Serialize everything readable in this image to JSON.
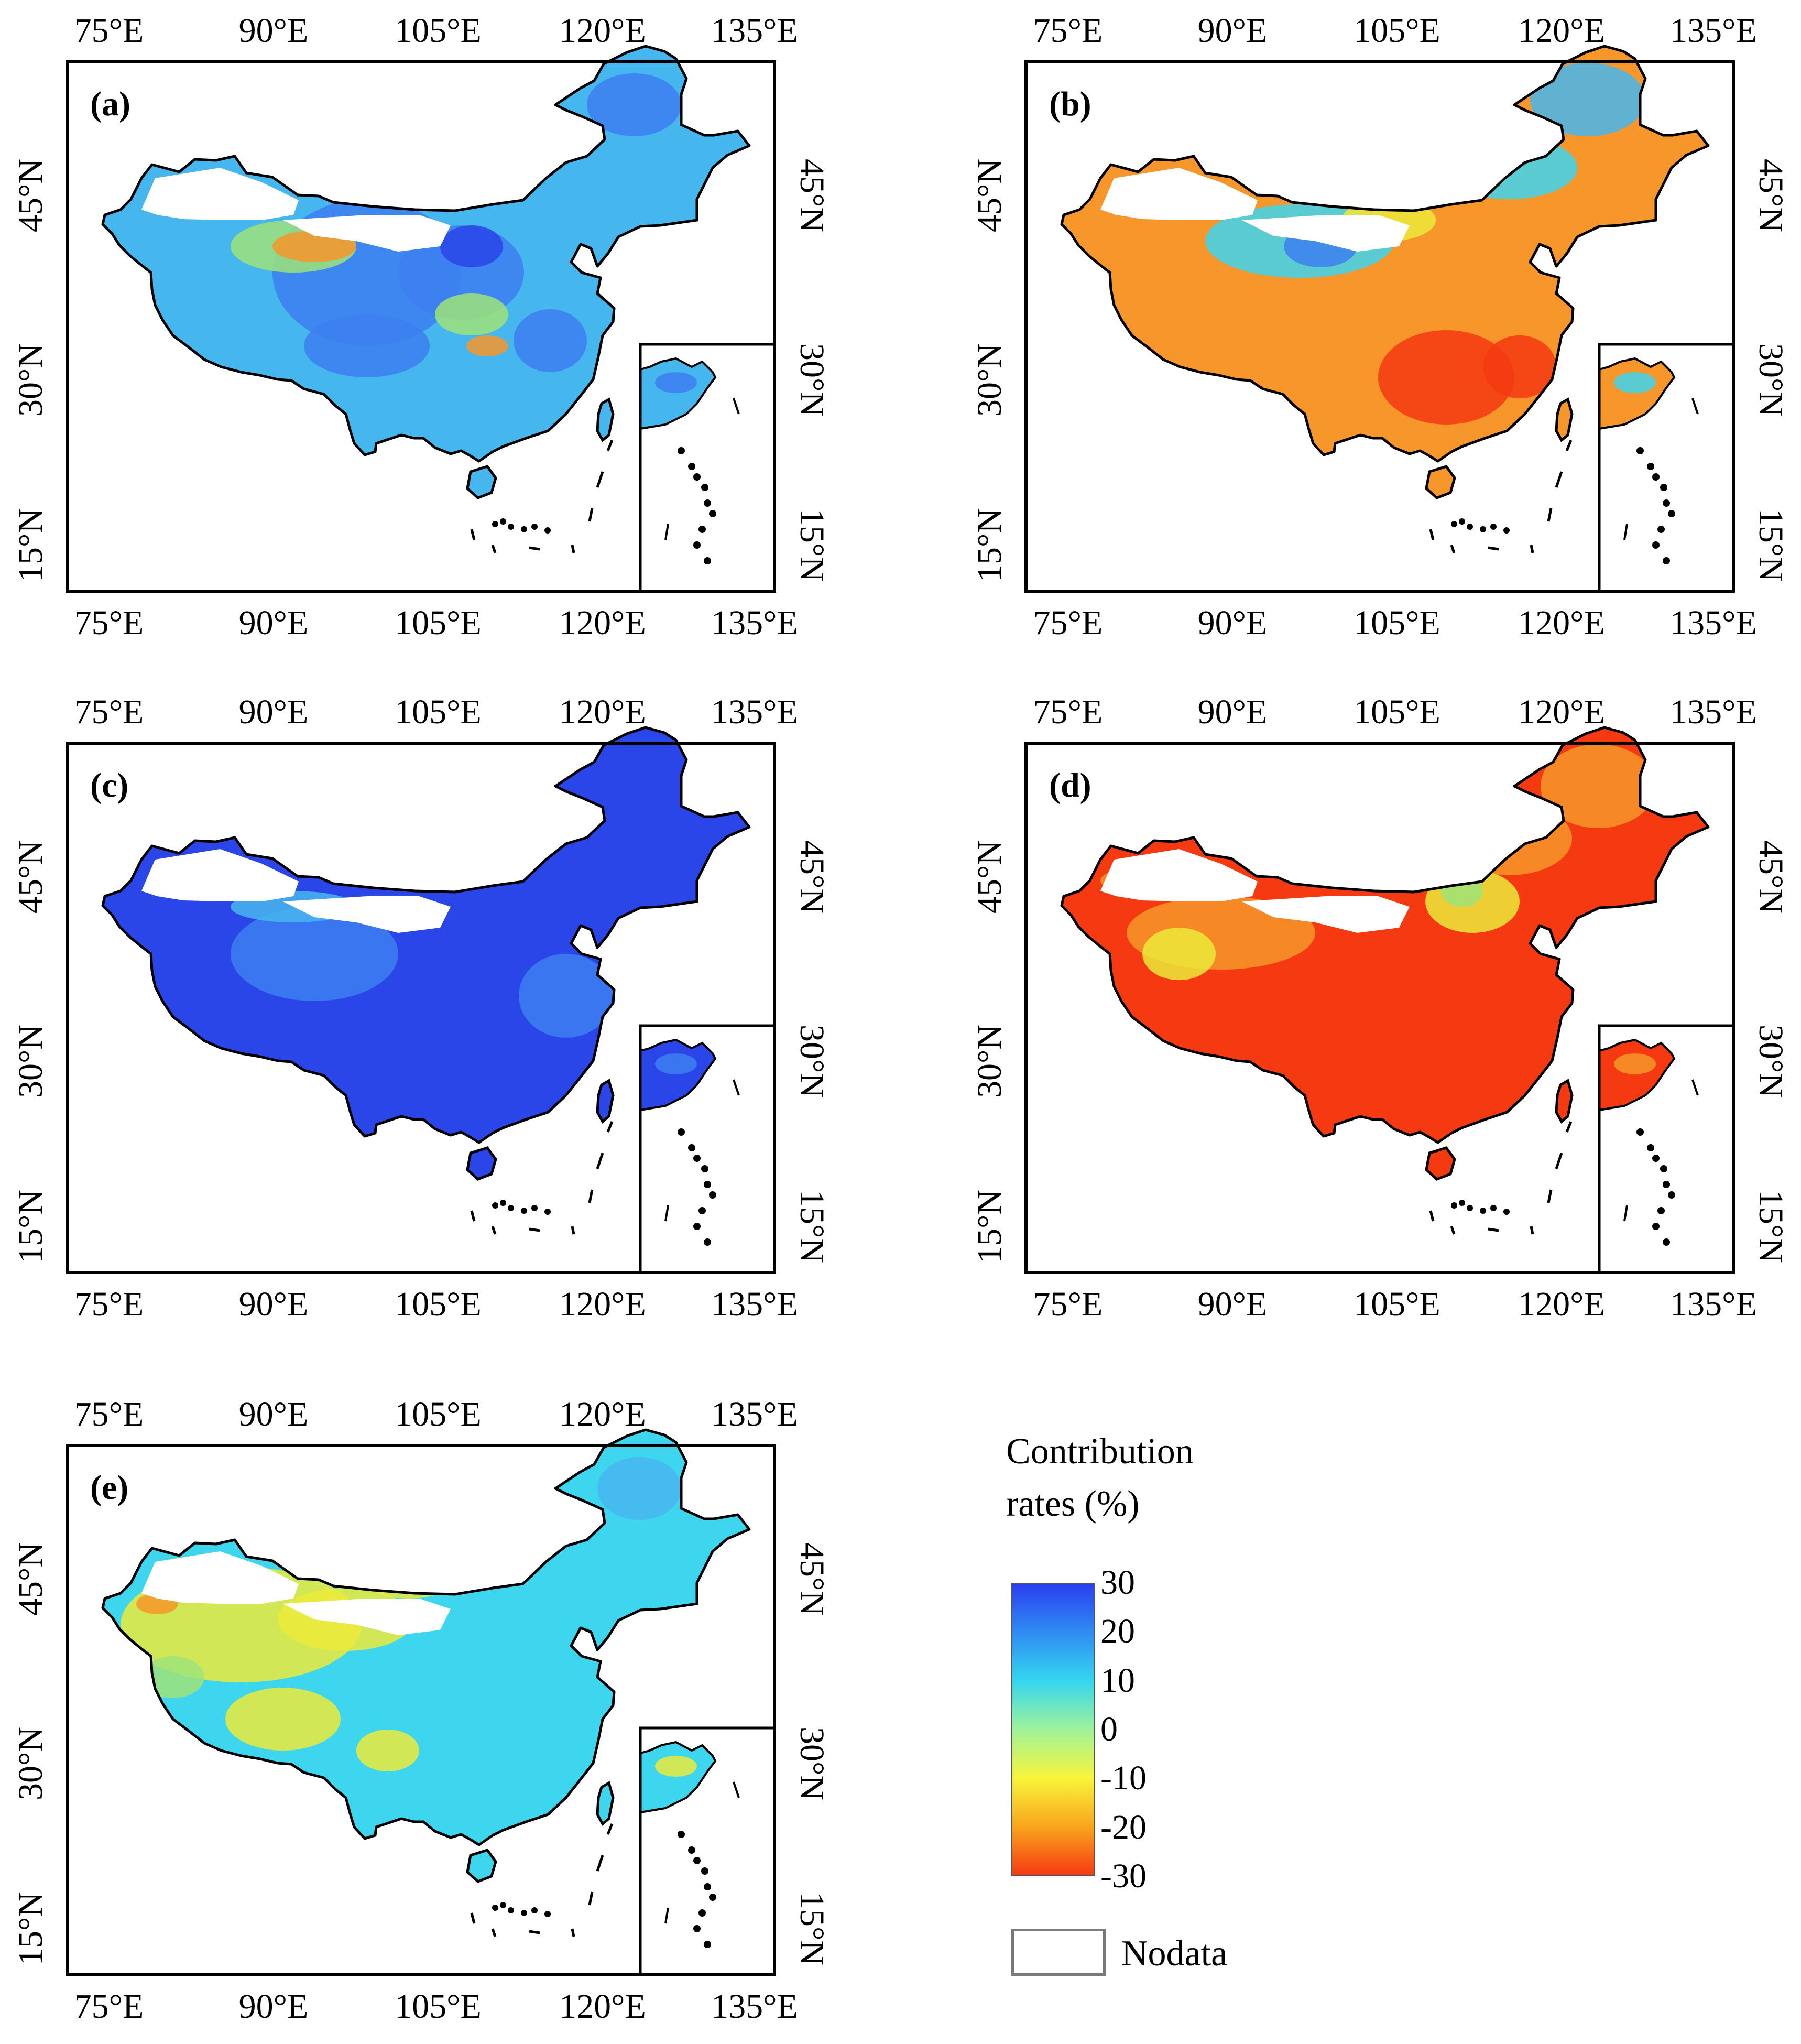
{
  "panels": [
    {
      "id": "a",
      "label": "(a)",
      "scheme": "mixedblue"
    },
    {
      "id": "b",
      "label": "(b)",
      "scheme": "northblue_southorange"
    },
    {
      "id": "c",
      "label": "(c)",
      "scheme": "deepblue"
    },
    {
      "id": "d",
      "label": "(d)",
      "scheme": "redorange"
    },
    {
      "id": "e",
      "label": "(e)",
      "scheme": "yellowcyan"
    }
  ],
  "axes": {
    "lon_ticks": [
      "75°E",
      "90°E",
      "105°E",
      "120°E",
      "135°E"
    ],
    "lat_ticks": [
      "45°N",
      "30°N",
      "15°N"
    ]
  },
  "legend": {
    "title_line1": "Contribution",
    "title_line2": "rates (%)",
    "ticks": [
      "30",
      "20",
      "10",
      "0",
      "-10",
      "-20",
      "-30"
    ],
    "nodata_label": "Nodata",
    "colors": [
      "#2b3ff0",
      "#2f8cf2",
      "#35d6f0",
      "#9ff39a",
      "#f7f53a",
      "#f9a51e",
      "#f53a12"
    ]
  },
  "colors": {
    "deepblue": "#2a45e8",
    "blue": "#3d7ff0",
    "lightblue": "#46b6ee",
    "cyan": "#3ed6ee",
    "green": "#9fe37a",
    "yellow": "#ecea3a",
    "orange": "#f7962a",
    "red": "#f53a12"
  }
}
